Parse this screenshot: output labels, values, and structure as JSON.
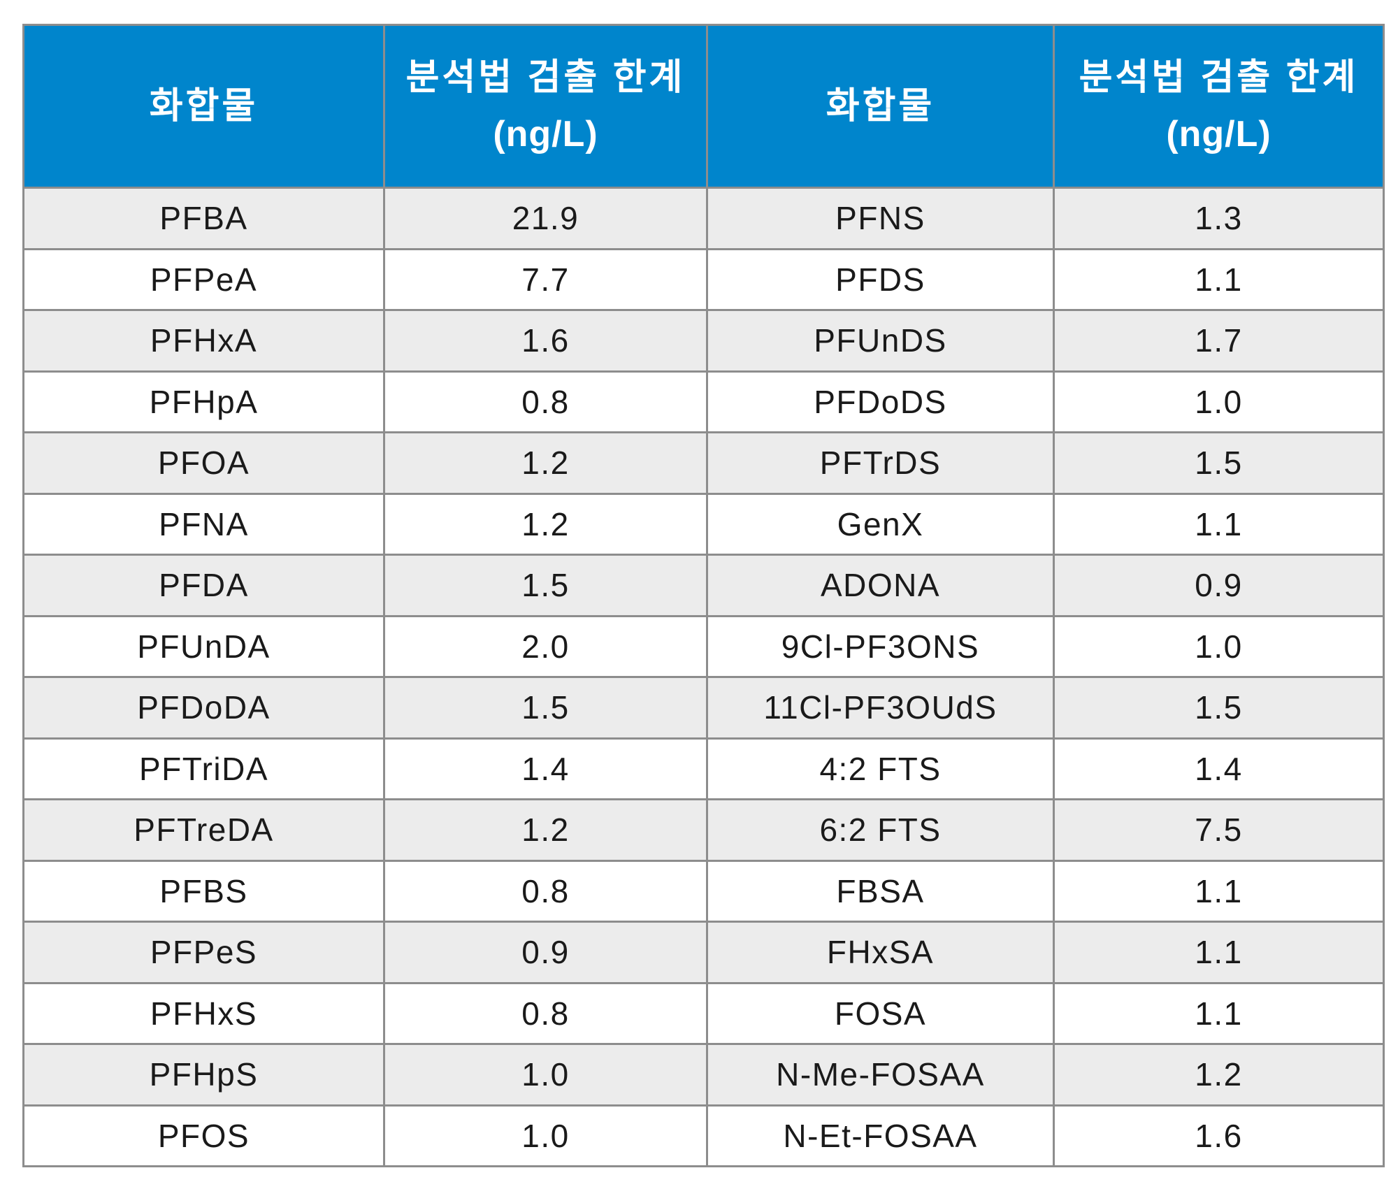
{
  "header": {
    "col1": "화합물",
    "col2_line1": "분석법 검출 한계",
    "col2_line2": "(ng/L)",
    "col3": "화합물",
    "col4_line1": "분석법 검출 한계",
    "col4_line2": "(ng/L)"
  },
  "colors": {
    "header_bg": "#0085cc",
    "header_text": "#ffffff",
    "stripe": "#ececec",
    "border": "#8d8d8d"
  },
  "rows": [
    [
      "PFBA",
      "21.9",
      "PFNS",
      "1.3"
    ],
    [
      "PFPeA",
      "7.7",
      "PFDS",
      "1.1"
    ],
    [
      "PFHxA",
      "1.6",
      "PFUnDS",
      "1.7"
    ],
    [
      "PFHpA",
      "0.8",
      "PFDoDS",
      "1.0"
    ],
    [
      "PFOA",
      "1.2",
      "PFTrDS",
      "1.5"
    ],
    [
      "PFNA",
      "1.2",
      "GenX",
      "1.1"
    ],
    [
      "PFDA",
      "1.5",
      "ADONA",
      "0.9"
    ],
    [
      "PFUnDA",
      "2.0",
      "9Cl-PF3ONS",
      "1.0"
    ],
    [
      "PFDoDA",
      "1.5",
      "11Cl-PF3OUdS",
      "1.5"
    ],
    [
      "PFTriDA",
      "1.4",
      "4:2 FTS",
      "1.4"
    ],
    [
      "PFTreDA",
      "1.2",
      "6:2 FTS",
      "7.5"
    ],
    [
      "PFBS",
      "0.8",
      "FBSA",
      "1.1"
    ],
    [
      "PFPeS",
      "0.9",
      "FHxSA",
      "1.1"
    ],
    [
      "PFHxS",
      "0.8",
      "FOSA",
      "1.1"
    ],
    [
      "PFHpS",
      "1.0",
      "N-Me-FOSAA",
      "1.2"
    ],
    [
      "PFOS",
      "1.0",
      "N-Et-FOSAA",
      "1.6"
    ]
  ]
}
